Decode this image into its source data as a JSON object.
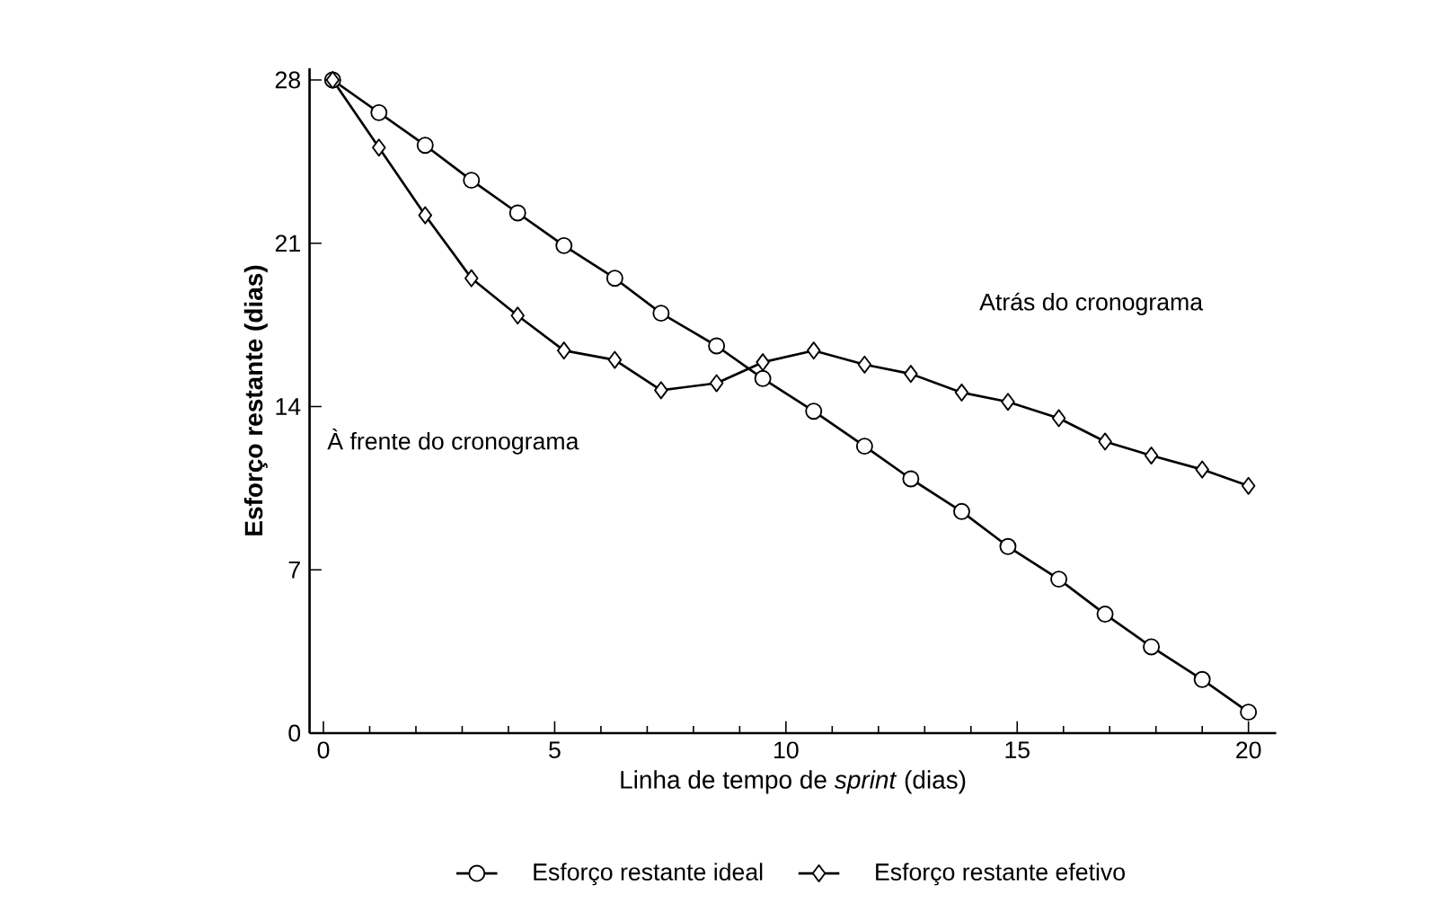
{
  "chart_data": {
    "type": "line",
    "xlabel": "Linha de tempo de *sprint* (dias)",
    "ylabel": "Esforço restante (dias)",
    "x": [
      0.2,
      1.2,
      2.2,
      3.2,
      4.2,
      5.2,
      6.3,
      7.3,
      8.5,
      9.5,
      10.6,
      11.7,
      12.7,
      13.8,
      14.8,
      15.9,
      16.9,
      17.9,
      19.0,
      20.0
    ],
    "series": [
      {
        "name": "Esforço restante ideal",
        "color": "#000000",
        "marker": "circle",
        "values": [
          28.0,
          26.6,
          25.2,
          23.7,
          22.3,
          20.9,
          19.5,
          18.0,
          16.6,
          15.2,
          13.8,
          12.3,
          10.9,
          9.5,
          8.0,
          6.6,
          5.1,
          3.7,
          2.3,
          0.9
        ]
      },
      {
        "name": "Esforço restante efetivo",
        "color": "#000000",
        "marker": "diamond",
        "values": [
          28.0,
          25.1,
          22.2,
          19.5,
          17.9,
          16.4,
          16.0,
          14.7,
          15.0,
          15.9,
          16.4,
          15.8,
          15.4,
          14.6,
          14.2,
          13.5,
          12.5,
          11.9,
          11.3,
          10.6
        ]
      }
    ],
    "annotations": [
      "Atrás do cronograma",
      "À frente do cronograma"
    ],
    "xlim": [
      -0.3,
      20.6
    ],
    "ylim": [
      0,
      28.5
    ],
    "xticks": [
      0,
      5,
      10,
      15,
      20
    ],
    "yticks": [
      0,
      7,
      14,
      21,
      28
    ],
    "legend": "bottom",
    "line_style": "solid",
    "grid": false
  }
}
